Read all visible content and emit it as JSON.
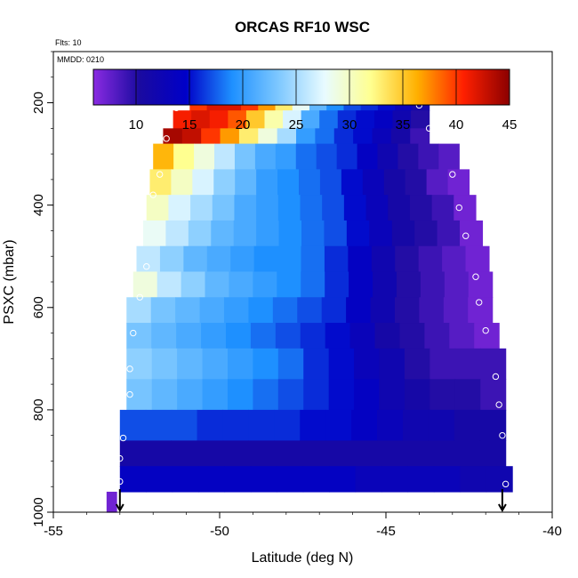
{
  "chart_data": {
    "type": "heatmap",
    "title": "ORCAS RF10 WSC",
    "annotations": [
      "Flts: 10",
      "MMDD: 0210"
    ],
    "xlabel": "Latitude (deg N)",
    "ylabel": "PSXC (mbar)",
    "xlim": [
      -55,
      -40
    ],
    "ylim": [
      1000,
      100
    ],
    "x_ticks": [
      "-55",
      "-50",
      "-45",
      "-40"
    ],
    "y_ticks": [
      "200",
      "400",
      "600",
      "800",
      "1000"
    ],
    "colorbar": {
      "range": [
        6,
        45
      ],
      "ticks": [
        "10",
        "15",
        "20",
        "25",
        "30",
        "35",
        "40",
        "45"
      ],
      "stops": [
        "#8a2be2",
        "#1a0aa0",
        "#0000c8",
        "#1e90ff",
        "#7ec8ff",
        "#e8fbff",
        "#ffff90",
        "#ffb000",
        "#ff2000",
        "#8b0000"
      ],
      "scale": "linear",
      "position": "top inside plot"
    },
    "markers": {
      "type": "down-arrow",
      "latitudes": [
        -53.0,
        -41.5
      ]
    },
    "rows": [
      {
        "p_top": 170,
        "p_bot": 215,
        "lat_start": -50.9,
        "lat_end": -43.7,
        "values": [
          40,
          42,
          42,
          40,
          37,
          33,
          28,
          22,
          19,
          17,
          16,
          15,
          13,
          11
        ]
      },
      {
        "p_top": 215,
        "p_bot": 250,
        "lat_start": -51.4,
        "lat_end": -43.7,
        "values": [
          41,
          42,
          41,
          39,
          35,
          31,
          27,
          21,
          18,
          16,
          15,
          14,
          12,
          10
        ]
      },
      {
        "p_top": 250,
        "p_bot": 280,
        "lat_start": -51.7,
        "lat_end": -43.7,
        "values": [
          44,
          43,
          40,
          37,
          33,
          29,
          25,
          20,
          18,
          16,
          15,
          13,
          11,
          9
        ]
      },
      {
        "p_top": 280,
        "p_bot": 330,
        "lat_start": -52.0,
        "lat_end": -42.8,
        "values": [
          36,
          32,
          29,
          26,
          23,
          21,
          20,
          18,
          17,
          16,
          14,
          12,
          10,
          9,
          8
        ]
      },
      {
        "p_top": 330,
        "p_bot": 380,
        "lat_start": -52.1,
        "lat_end": -42.5,
        "values": [
          33,
          30,
          27,
          24,
          22,
          20,
          19,
          18,
          17,
          15,
          13,
          11,
          10,
          8,
          7
        ]
      },
      {
        "p_top": 380,
        "p_bot": 430,
        "lat_start": -52.2,
        "lat_end": -42.3,
        "values": [
          30,
          27,
          25,
          23,
          21,
          20,
          19,
          18,
          17,
          15,
          13,
          11,
          10,
          9,
          7
        ]
      },
      {
        "p_top": 430,
        "p_bot": 480,
        "lat_start": -52.3,
        "lat_end": -42.1,
        "values": [
          28,
          26,
          24,
          22,
          21,
          20,
          19,
          18,
          17,
          15,
          13,
          11,
          10,
          9,
          7
        ]
      },
      {
        "p_top": 480,
        "p_bot": 530,
        "lat_start": -52.5,
        "lat_end": -41.9,
        "values": [
          26,
          24,
          22,
          21,
          20,
          19,
          19,
          18,
          16,
          14,
          12,
          10,
          9,
          8,
          7
        ]
      },
      {
        "p_top": 530,
        "p_bot": 580,
        "lat_start": -52.6,
        "lat_end": -41.8,
        "values": [
          29,
          26,
          24,
          22,
          21,
          20,
          19,
          18,
          16,
          14,
          12,
          10,
          9,
          8,
          7
        ]
      },
      {
        "p_top": 580,
        "p_bot": 630,
        "lat_start": -52.8,
        "lat_end": -41.8,
        "values": [
          25,
          23,
          22,
          21,
          20,
          19,
          18,
          17,
          16,
          14,
          12,
          10,
          9,
          8,
          7
        ]
      },
      {
        "p_top": 630,
        "p_bot": 680,
        "lat_start": -52.8,
        "lat_end": -41.6,
        "values": [
          23,
          22,
          21,
          20,
          19,
          18,
          17,
          16,
          15,
          13,
          11,
          10,
          9,
          8,
          7
        ]
      },
      {
        "p_top": 680,
        "p_bot": 740,
        "lat_start": -52.8,
        "lat_end": -41.4,
        "values": [
          24,
          23,
          22,
          21,
          20,
          19,
          18,
          16,
          15,
          13,
          12,
          10,
          9,
          9,
          9
        ]
      },
      {
        "p_top": 740,
        "p_bot": 800,
        "lat_start": -52.8,
        "lat_end": -41.4,
        "values": [
          23,
          22,
          21,
          20,
          19,
          18,
          17,
          16,
          15,
          14,
          12,
          11,
          10,
          10,
          9
        ]
      },
      {
        "p_top": 800,
        "p_bot": 860,
        "lat_start": -53.0,
        "lat_end": -41.4,
        "values": [
          17,
          17,
          17,
          16,
          16,
          16,
          16,
          15,
          15,
          14,
          13,
          12,
          12,
          11,
          11
        ]
      },
      {
        "p_top": 860,
        "p_bot": 910,
        "lat_start": -53.0,
        "lat_end": -41.4,
        "values": [
          11,
          11,
          11,
          11,
          11,
          11,
          11,
          11,
          11,
          11,
          11,
          11,
          11,
          11,
          11
        ]
      },
      {
        "p_top": 910,
        "p_bot": 960,
        "lat_start": -53.0,
        "lat_end": -41.2,
        "values": [
          14,
          14,
          14,
          14,
          14,
          14,
          14,
          14,
          14,
          13,
          13,
          13,
          13,
          12,
          12
        ]
      },
      {
        "p_top": 960,
        "p_bot": 1000,
        "lat_start": -53.4,
        "lat_end": -53.1,
        "values": [
          7
        ]
      }
    ],
    "flight_track": [
      [
        -51.0,
        175
      ],
      [
        -50.5,
        175
      ],
      [
        -50.0,
        175
      ],
      [
        -49.3,
        175
      ],
      [
        -48.7,
        175
      ],
      [
        -48.1,
        175
      ],
      [
        -47.3,
        175
      ],
      [
        -46.7,
        175
      ],
      [
        -46.1,
        175
      ],
      [
        -45.4,
        175
      ],
      [
        -44.8,
        175
      ],
      [
        -44.3,
        185
      ],
      [
        -44.0,
        205
      ],
      [
        -43.7,
        250
      ],
      [
        -51.3,
        210
      ],
      [
        -51.6,
        270
      ],
      [
        -51.8,
        340
      ],
      [
        -52.0,
        380
      ],
      [
        -52.2,
        520
      ],
      [
        -52.4,
        580
      ],
      [
        -52.6,
        650
      ],
      [
        -52.7,
        720
      ],
      [
        -52.7,
        770
      ],
      [
        -52.9,
        855
      ],
      [
        -53.0,
        895
      ],
      [
        -53.0,
        940
      ],
      [
        -43.0,
        340
      ],
      [
        -42.8,
        405
      ],
      [
        -42.6,
        460
      ],
      [
        -42.3,
        540
      ],
      [
        -42.2,
        590
      ],
      [
        -42.0,
        645
      ],
      [
        -41.7,
        735
      ],
      [
        -41.6,
        790
      ],
      [
        -41.5,
        850
      ],
      [
        -41.4,
        945
      ]
    ]
  }
}
